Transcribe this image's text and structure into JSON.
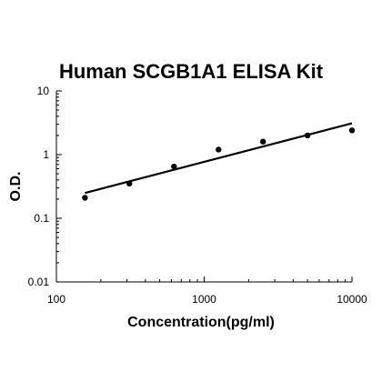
{
  "chart_data": {
    "type": "scatter",
    "title": "Human SCGB1A1 ELISA Kit",
    "xlabel": "Concentration(pg/ml)",
    "ylabel": "O.D.",
    "xscale": "log",
    "yscale": "log",
    "xlim": [
      100,
      10000
    ],
    "ylim": [
      0.01,
      10
    ],
    "xticks": [
      "100",
      "1000",
      "10000"
    ],
    "yticks": [
      "0.01",
      "0.1",
      "1",
      "10"
    ],
    "grid": false,
    "series": [
      {
        "points": [
          {
            "x": 156,
            "y": 0.21
          },
          {
            "x": 312,
            "y": 0.35
          },
          {
            "x": 625,
            "y": 0.65
          },
          {
            "x": 1250,
            "y": 1.2
          },
          {
            "x": 2500,
            "y": 1.6
          },
          {
            "x": 5000,
            "y": 2.0
          },
          {
            "x": 10000,
            "y": 2.4
          }
        ]
      }
    ],
    "trendline": {
      "x": [
        156,
        10000
      ],
      "y": [
        0.25,
        3.1
      ]
    }
  }
}
